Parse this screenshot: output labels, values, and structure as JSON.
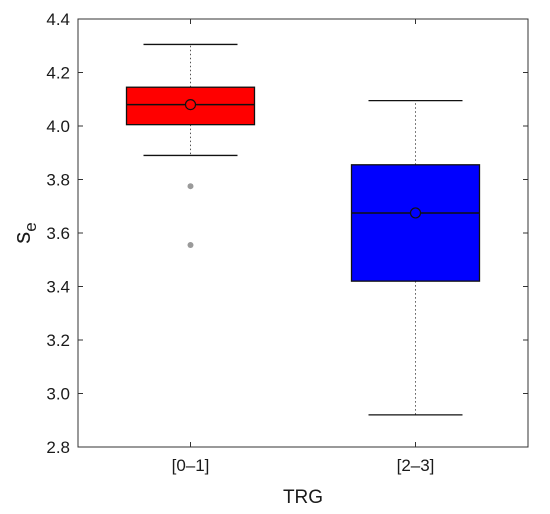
{
  "chart_data": {
    "type": "box",
    "title": "",
    "xlabel": "TRG",
    "ylabel_main": "s",
    "ylabel_sub": "e",
    "ylim": [
      2.8,
      4.4
    ],
    "yticks": [
      "2.8",
      "3.0",
      "3.2",
      "3.4",
      "3.6",
      "3.8",
      "4.0",
      "4.2",
      "4.4"
    ],
    "grid": false,
    "categories": [
      "[0–1]",
      "[2–3]"
    ],
    "boxes": [
      {
        "category": "[0–1]",
        "color": "#ff0000",
        "whisker_low": 3.89,
        "q1": 4.005,
        "median": 4.08,
        "mean": 4.08,
        "q3": 4.145,
        "whisker_high": 4.305,
        "outliers": [
          3.775,
          3.555
        ]
      },
      {
        "category": "[2–3]",
        "color": "#0000ff",
        "whisker_low": 2.92,
        "q1": 3.42,
        "median": 3.675,
        "mean": 3.675,
        "q3": 3.855,
        "whisker_high": 4.095,
        "outliers": []
      }
    ]
  }
}
